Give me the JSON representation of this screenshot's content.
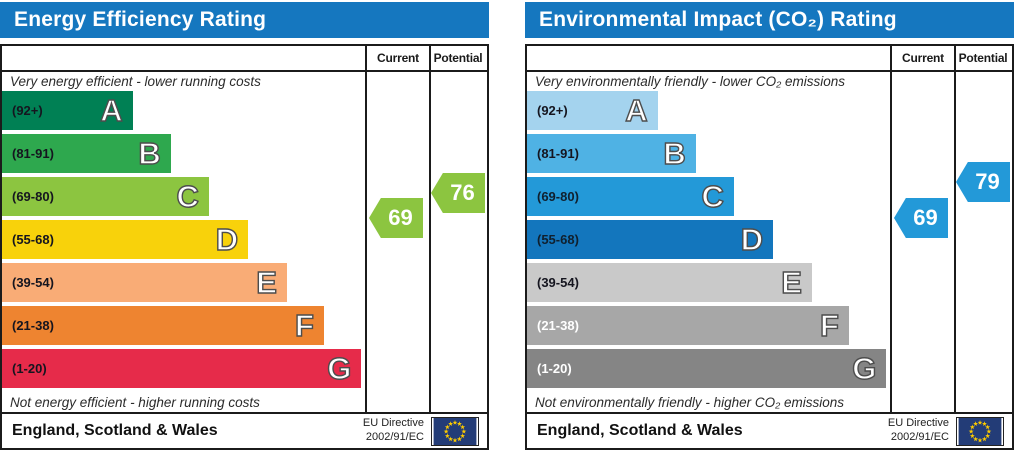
{
  "colors": {
    "header_blue": "#1577bf",
    "border_dark": "#1b1b1b",
    "flag_blue": "#233c77",
    "star_yellow": "#fecb00"
  },
  "chart_data": [
    {
      "type": "bar",
      "title": "Energy Efficiency Rating",
      "columns": [
        "Current",
        "Potential"
      ],
      "top_note": "Very energy efficient - lower running costs",
      "bottom_note": "Not energy efficient - higher running costs",
      "bands": [
        {
          "letter": "A",
          "range_label": "(92+)",
          "lo": 92,
          "hi": 100,
          "color": "#008054",
          "label_color": "#15151f",
          "width_pct": 36
        },
        {
          "letter": "B",
          "range_label": "(81-91)",
          "lo": 81,
          "hi": 91,
          "color": "#2ea84e",
          "label_color": "#15151f",
          "width_pct": 46.5
        },
        {
          "letter": "C",
          "range_label": "(69-80)",
          "lo": 69,
          "hi": 80,
          "color": "#8cc540",
          "label_color": "#15151f",
          "width_pct": 57
        },
        {
          "letter": "D",
          "range_label": "(55-68)",
          "lo": 55,
          "hi": 68,
          "color": "#f8d20b",
          "label_color": "#15151f",
          "width_pct": 67.8
        },
        {
          "letter": "E",
          "range_label": "(39-54)",
          "lo": 39,
          "hi": 54,
          "color": "#f9ac76",
          "label_color": "#15151f",
          "width_pct": 78.5
        },
        {
          "letter": "F",
          "range_label": "(21-38)",
          "lo": 21,
          "hi": 38,
          "color": "#ee8430",
          "label_color": "#15151f",
          "width_pct": 88.7
        },
        {
          "letter": "G",
          "range_label": "(1-20)",
          "lo": 1,
          "hi": 20,
          "color": "#e62b4a",
          "label_color": "#15151f",
          "width_pct": 99
        }
      ],
      "current": {
        "value": 69,
        "color": "#8cc540"
      },
      "potential": {
        "value": 76,
        "color": "#8cc540"
      },
      "footer_region": "England, Scotland & Wales",
      "footer_directive": [
        "EU Directive",
        "2002/91/EC"
      ],
      "footer_icon": "eu-flag-circle-of-stars"
    },
    {
      "type": "bar",
      "title": "Environmental Impact (CO₂) Rating",
      "columns": [
        "Current",
        "Potential"
      ],
      "top_note": "Very environmentally friendly - lower CO₂ emissions",
      "bottom_note": "Not environmentally friendly - higher CO₂ emissions",
      "bands": [
        {
          "letter": "A",
          "range_label": "(92+)",
          "lo": 92,
          "hi": 100,
          "color": "#a4d3ee",
          "label_color": "#15151f",
          "width_pct": 36
        },
        {
          "letter": "B",
          "range_label": "(81-91)",
          "lo": 81,
          "hi": 91,
          "color": "#4fb2e4",
          "label_color": "#15151f",
          "width_pct": 46.5
        },
        {
          "letter": "C",
          "range_label": "(69-80)",
          "lo": 69,
          "hi": 80,
          "color": "#2399d8",
          "label_color": "#10202e",
          "width_pct": 57
        },
        {
          "letter": "D",
          "range_label": "(55-68)",
          "lo": 55,
          "hi": 68,
          "color": "#1376bd",
          "label_color": "#10202e",
          "width_pct": 67.8
        },
        {
          "letter": "E",
          "range_label": "(39-54)",
          "lo": 39,
          "hi": 54,
          "color": "#c9c9c9",
          "label_color": "#15151f",
          "width_pct": 78.5
        },
        {
          "letter": "F",
          "range_label": "(21-38)",
          "lo": 21,
          "hi": 38,
          "color": "#a7a7a7",
          "label_color": "#ffffff",
          "width_pct": 88.7
        },
        {
          "letter": "G",
          "range_label": "(1-20)",
          "lo": 1,
          "hi": 20,
          "color": "#858585",
          "label_color": "#ffffff",
          "width_pct": 99
        }
      ],
      "current": {
        "value": 69,
        "color": "#2399d8"
      },
      "potential": {
        "value": 79,
        "color": "#2399d8"
      },
      "footer_region": "England, Scotland & Wales",
      "footer_directive": [
        "EU Directive",
        "2002/91/EC"
      ],
      "footer_icon": "eu-flag-circle-of-stars"
    }
  ]
}
